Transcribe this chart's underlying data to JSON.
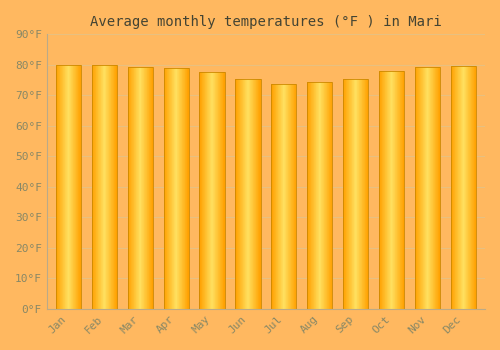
{
  "title": "Average monthly temperatures (°F ) in Mari",
  "months": [
    "Jan",
    "Feb",
    "Mar",
    "Apr",
    "May",
    "Jun",
    "Jul",
    "Aug",
    "Sep",
    "Oct",
    "Nov",
    "Dec"
  ],
  "values": [
    80.1,
    80.1,
    79.3,
    79.0,
    77.5,
    75.4,
    73.6,
    74.5,
    75.4,
    78.1,
    79.3,
    79.5
  ],
  "ylim": [
    0,
    90
  ],
  "yticks": [
    0,
    10,
    20,
    30,
    40,
    50,
    60,
    70,
    80,
    90
  ],
  "bar_color_left": "#FFC020",
  "bar_color_mid": "#FFE060",
  "bar_color_right": "#FFA800",
  "bar_edge_color": "#CC8800",
  "background_top": "#FFD090",
  "background_bottom": "#FFB860",
  "grid_color": "#E8C080",
  "title_fontsize": 10,
  "tick_fontsize": 8,
  "font_family": "monospace"
}
